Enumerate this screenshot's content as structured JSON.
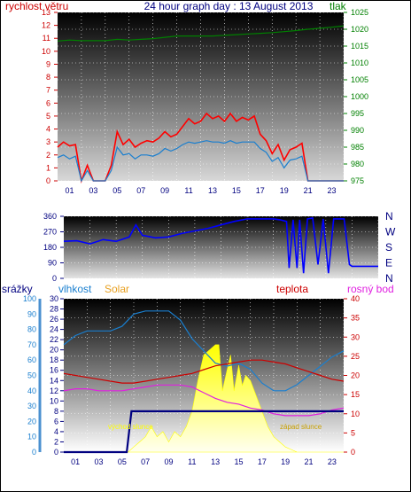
{
  "chart_data": [
    {
      "type": "line",
      "title": "24 hour graph day : 13 August 2013",
      "ylabel_left": "rychlost větru",
      "ylabel_right": "tlak",
      "left_axis": {
        "range": [
          0,
          13
        ],
        "ticks": [
          0,
          1,
          2,
          3,
          4,
          5,
          6,
          7,
          8,
          9,
          10,
          11,
          12,
          13
        ]
      },
      "right_axis": {
        "range": [
          975,
          1025
        ],
        "ticks": [
          975,
          980,
          985,
          990,
          995,
          1000,
          1005,
          1010,
          1015,
          1020,
          1025
        ]
      },
      "x_axis": {
        "range": [
          0,
          24
        ],
        "ticks": [
          "01",
          "03",
          "05",
          "07",
          "09",
          "11",
          "13",
          "15",
          "17",
          "19",
          "21",
          "23"
        ]
      },
      "series": [
        {
          "name": "",
          "color": "#ff0000",
          "axis": "left",
          "style": "gust",
          "x": [
            0,
            0.5,
            1,
            1.5,
            2,
            2.5,
            3,
            3.5,
            4,
            4.5,
            5,
            5.5,
            6,
            6.5,
            7,
            7.5,
            8,
            8.5,
            9,
            9.5,
            10,
            10.5,
            11,
            11.5,
            12,
            12.5,
            13,
            13.5,
            14,
            14.5,
            15,
            15.5,
            16,
            16.5,
            17,
            17.5,
            18,
            18.5,
            19,
            19.5,
            20,
            20.5,
            21,
            21.5,
            22,
            22.5,
            23,
            23.5,
            24
          ],
          "y": [
            2.6,
            3,
            2.7,
            2.8,
            0,
            1.2,
            0,
            0,
            0,
            1.2,
            3.8,
            2.8,
            3.2,
            2.6,
            2.9,
            3.1,
            3,
            3.3,
            3.8,
            3.4,
            3.6,
            4.2,
            4.8,
            4.4,
            4.6,
            5.2,
            4.8,
            5,
            4.6,
            5.2,
            4.6,
            4.9,
            4.7,
            5,
            3.6,
            3.1,
            2.1,
            2.8,
            1.6,
            2.4,
            2.6,
            2.9,
            0,
            0,
            0,
            0,
            0,
            0,
            0
          ]
        },
        {
          "name": "",
          "color": "#1a7fcf",
          "axis": "left",
          "style": "avg",
          "x": [
            0,
            0.5,
            1,
            1.5,
            2,
            2.5,
            3,
            3.5,
            4,
            4.5,
            5,
            5.5,
            6,
            6.5,
            7,
            7.5,
            8,
            8.5,
            9,
            9.5,
            10,
            10.5,
            11,
            11.5,
            12,
            12.5,
            13,
            13.5,
            14,
            14.5,
            15,
            15.5,
            16,
            16.5,
            17,
            17.5,
            18,
            18.5,
            19,
            19.5,
            20,
            20.5,
            21,
            21.5,
            22,
            22.5,
            23,
            23.5,
            24
          ],
          "y": [
            1.8,
            2,
            1.7,
            1.9,
            0,
            0.8,
            0,
            0,
            0,
            0.8,
            2.6,
            2,
            2.1,
            1.7,
            2,
            2,
            1.9,
            2.1,
            2.5,
            2.3,
            2.5,
            2.8,
            3,
            2.9,
            3,
            3.1,
            3,
            3,
            2.9,
            3.1,
            2.9,
            3,
            3,
            3,
            2.5,
            2.2,
            1.5,
            1.8,
            1,
            1.6,
            1.7,
            1.9,
            0,
            0,
            0,
            0,
            0,
            0,
            0
          ]
        },
        {
          "name": "",
          "color": "#008000",
          "axis": "right",
          "x": [
            0,
            1,
            2,
            3,
            4,
            5,
            6,
            7,
            8,
            9,
            10,
            11,
            12,
            13,
            14,
            15,
            16,
            17,
            18,
            19,
            20,
            21,
            22,
            23,
            24
          ],
          "y": [
            1016.5,
            1016.8,
            1016.6,
            1016.6,
            1016.6,
            1017,
            1016.8,
            1017,
            1017.2,
            1017.6,
            1018,
            1018,
            1018,
            1018,
            1018.2,
            1018.4,
            1018.6,
            1018.8,
            1019,
            1019.3,
            1019.6,
            1020,
            1020.3,
            1020.6,
            1021
          ]
        }
      ],
      "grid": true
    },
    {
      "type": "scatter",
      "title": "",
      "left_axis": {
        "range": [
          0,
          360
        ],
        "ticks": [
          0,
          90,
          180,
          270,
          360
        ]
      },
      "right_labels": [
        "N",
        "W",
        "S",
        "E",
        "N"
      ],
      "x_axis": {
        "range": [
          0,
          24
        ]
      },
      "series": [
        {
          "name": "",
          "color": "#0000ff",
          "x": [
            0,
            1,
            2,
            3,
            4,
            5,
            5.5,
            6,
            7,
            8,
            9,
            10,
            11,
            12,
            13,
            14,
            15,
            16,
            16.5,
            17,
            17.2,
            17.5,
            17.8,
            18,
            18.3,
            18.6,
            19,
            19.4,
            19.8,
            20.2,
            20.6,
            21,
            21.4,
            21.8,
            22,
            23,
            24
          ],
          "y": [
            215,
            218,
            200,
            225,
            215,
            240,
            310,
            250,
            235,
            240,
            260,
            275,
            290,
            310,
            330,
            345,
            345,
            345,
            340,
            330,
            60,
            340,
            60,
            340,
            30,
            345,
            350,
            80,
            345,
            30,
            345,
            345,
            345,
            80,
            70,
            70,
            70
          ]
        }
      ],
      "grid": true
    },
    {
      "type": "line",
      "title": "",
      "labels": {
        "rain": "srážky",
        "humidity": "vlhkost",
        "solar": "Solar",
        "temperature": "teplota",
        "dewpoint": "rosný bod"
      },
      "axis_rain": {
        "range": [
          0,
          30
        ],
        "ticks": [
          0,
          2,
          4,
          6,
          8,
          10,
          12,
          14,
          16,
          18,
          20,
          22,
          24,
          26,
          28,
          30
        ]
      },
      "axis_humidity": {
        "range": [
          0,
          100
        ],
        "ticks": [
          0,
          10,
          20,
          30,
          40,
          50,
          60,
          70,
          80,
          90,
          100
        ]
      },
      "axis_temperature": {
        "range": [
          0,
          40
        ],
        "ticks": [
          0,
          5,
          10,
          15,
          20,
          25,
          30,
          35,
          40
        ]
      },
      "x_axis": {
        "range": [
          0,
          24
        ],
        "ticks": [
          "01",
          "03",
          "05",
          "07",
          "09",
          "11",
          "13",
          "15",
          "17",
          "19",
          "21",
          "23"
        ]
      },
      "annotations": [
        "východ slunce",
        "západ slunce"
      ],
      "series": [
        {
          "name": "Solar",
          "color": "#ffff00",
          "type": "area",
          "scale": "rain",
          "x": [
            0,
            5.5,
            6,
            6.5,
            7,
            7.5,
            8,
            8.5,
            9,
            9.5,
            10,
            10.5,
            11,
            11.5,
            12,
            12.5,
            13,
            13.3,
            13.6,
            14,
            14.3,
            14.6,
            15,
            15.3,
            15.6,
            16,
            16.5,
            17,
            17.5,
            18,
            18.5,
            19,
            19.5,
            20,
            24
          ],
          "y": [
            0,
            0,
            1,
            2,
            3,
            5,
            3,
            4,
            2,
            4,
            3,
            5,
            8,
            14,
            19,
            20,
            21,
            21,
            12,
            16,
            19,
            12,
            17,
            13,
            15,
            14,
            11,
            8,
            5,
            3,
            2,
            1,
            0.5,
            0,
            0
          ]
        },
        {
          "name": "vlhkost",
          "color": "#1a7fcf",
          "scale": "humidity",
          "x": [
            0,
            1,
            2,
            3,
            4,
            5,
            6,
            7,
            8,
            9,
            10,
            11,
            12,
            13,
            14,
            15,
            16,
            17,
            18,
            19,
            20,
            21,
            22,
            23,
            24
          ],
          "y": [
            70,
            76,
            79,
            79,
            79,
            82,
            90,
            92,
            92,
            92,
            86,
            74,
            66,
            58,
            56,
            58,
            54,
            45,
            40,
            40,
            44,
            50,
            56,
            62,
            66
          ]
        },
        {
          "name": "teplota",
          "color": "#cc0000",
          "scale": "temperature",
          "x": [
            0,
            1,
            2,
            3,
            4,
            5,
            6,
            7,
            8,
            9,
            10,
            11,
            12,
            13,
            14,
            15,
            16,
            17,
            18,
            19,
            20,
            21,
            22,
            23,
            24
          ],
          "y": [
            20.5,
            20,
            19.5,
            19,
            18.5,
            18,
            18,
            18.5,
            19,
            19.5,
            20,
            20.5,
            21.5,
            22.5,
            23,
            23.5,
            24,
            24,
            23.5,
            23,
            22,
            21,
            20,
            19,
            18.5
          ]
        },
        {
          "name": "rosný bod",
          "color": "#e020e0",
          "scale": "temperature",
          "x": [
            0,
            1,
            2,
            3,
            4,
            5,
            6,
            7,
            8,
            9,
            10,
            11,
            12,
            13,
            14,
            15,
            16,
            17,
            18,
            19,
            20,
            21,
            22,
            23,
            24
          ],
          "y": [
            16,
            16.5,
            16.5,
            16,
            16,
            16,
            16.5,
            17,
            17.5,
            17.5,
            17.5,
            17,
            15.5,
            14,
            13,
            12.5,
            11.5,
            11,
            10,
            9.5,
            9.5,
            9.5,
            10,
            11,
            11.5
          ]
        },
        {
          "name": "srážky",
          "color": "#000080",
          "scale": "rain",
          "style": "step",
          "x": [
            0,
            5.4,
            5.8,
            24
          ],
          "y": [
            0,
            0,
            8,
            8
          ]
        }
      ],
      "grid": true
    }
  ]
}
